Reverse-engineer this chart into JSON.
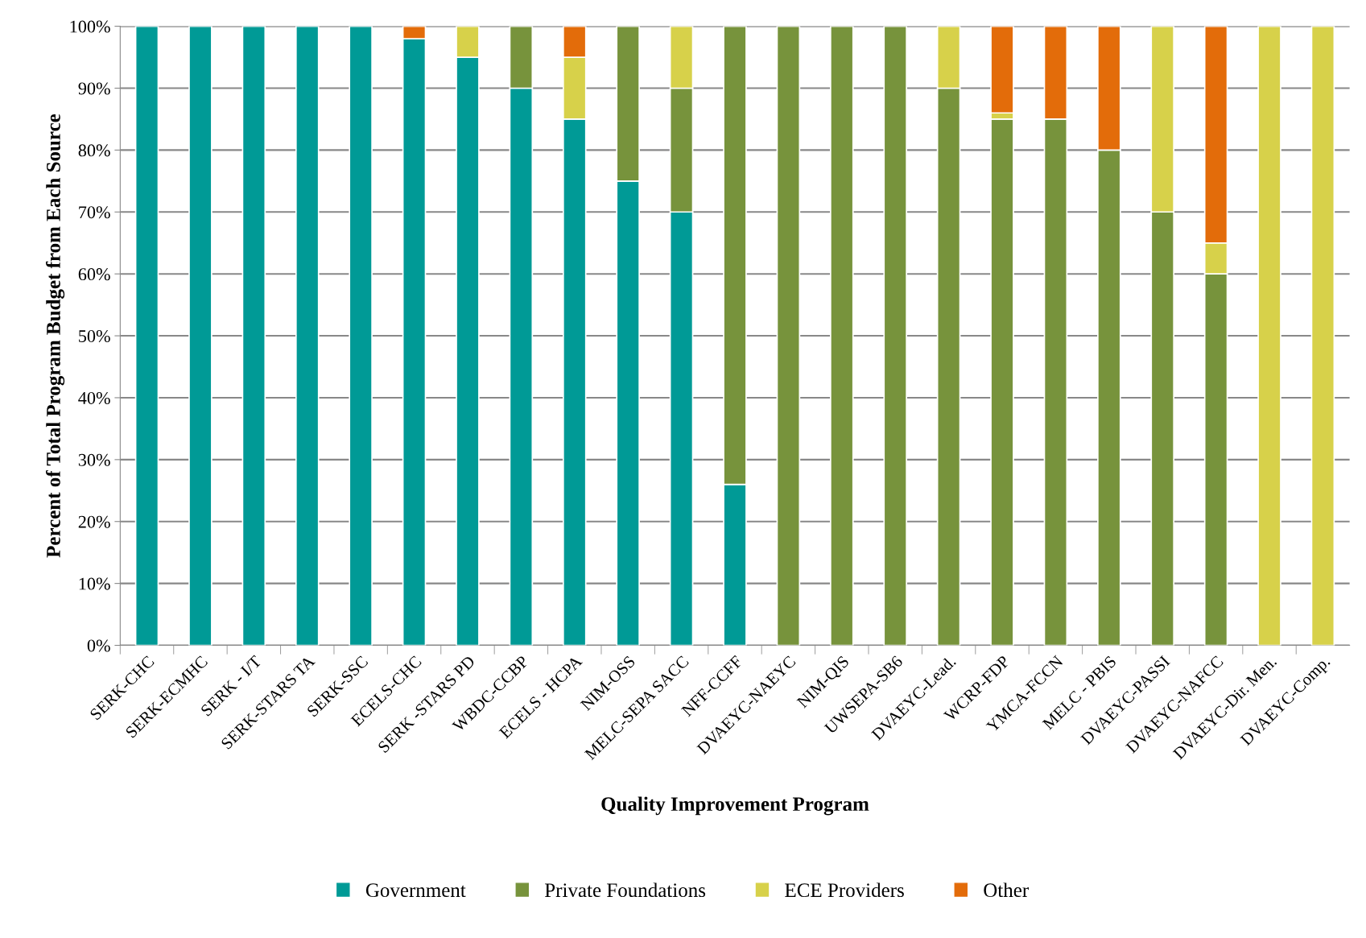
{
  "chart_data": {
    "type": "bar",
    "stacked": true,
    "xlabel": "Quality Improvement Program",
    "ylabel": "Percent of Total Program Budget from Each Source",
    "categories": [
      "SERK-CHC",
      "SERK-ECMHC",
      "SERK - I/T",
      "SERK-STARS TA",
      "SERK-SSC",
      "ECELS-CHC",
      "SERK -STARS PD",
      "WBDC-CCBP",
      "ECELS - HCPA",
      "NIM-OSS",
      "MELC-SEPA SACC",
      "NFF-CCFF",
      "DVAEYC-NAEYC",
      "NIM-QIS",
      "UWSEPA-SB6",
      "DVAEYC-Lead.",
      "WCRP-FDP",
      "YMCA-FCCN",
      "MELC - PBIS",
      "DVAEYC-PASSI",
      "DVAEYC-NAFCC",
      "DVAEYC-Dir. Men.",
      "DVAEYC-Comp."
    ],
    "series": [
      {
        "name": "Government",
        "color": "#009a96",
        "values": [
          100,
          100,
          100,
          100,
          100,
          98,
          95,
          90,
          85,
          75,
          70,
          26,
          0,
          0,
          0,
          0,
          0,
          0,
          0,
          0,
          0,
          0,
          0
        ]
      },
      {
        "name": "Private Foundations",
        "color": "#77933c",
        "values": [
          0,
          0,
          0,
          0,
          0,
          0,
          0,
          10,
          0,
          25,
          20,
          74,
          100,
          100,
          100,
          90,
          85,
          85,
          80,
          70,
          60,
          0,
          0
        ]
      },
      {
        "name": "ECE Providers",
        "color": "#d7d14a",
        "values": [
          0,
          0,
          0,
          0,
          0,
          0,
          5,
          0,
          10,
          0,
          10,
          0,
          0,
          0,
          0,
          10,
          1,
          0,
          0,
          30,
          5,
          100,
          100
        ]
      },
      {
        "name": "Other",
        "color": "#e36c0a",
        "values": [
          0,
          0,
          0,
          0,
          0,
          2,
          0,
          0,
          5,
          0,
          0,
          0,
          0,
          0,
          0,
          0,
          14,
          15,
          20,
          0,
          35,
          0,
          0
        ]
      }
    ],
    "ylim": [
      0,
      100
    ],
    "yticks": [
      {
        "value": 0,
        "label": "0%"
      },
      {
        "value": 10,
        "label": "10%"
      },
      {
        "value": 20,
        "label": "20%"
      },
      {
        "value": 30,
        "label": "30%"
      },
      {
        "value": 40,
        "label": "40%"
      },
      {
        "value": 50,
        "label": "50%"
      },
      {
        "value": 60,
        "label": "60%"
      },
      {
        "value": 70,
        "label": "70%"
      },
      {
        "value": 80,
        "label": "80%"
      },
      {
        "value": 90,
        "label": "90%"
      },
      {
        "value": 100,
        "label": "100%"
      }
    ],
    "grid": "y",
    "legend": "bottom"
  }
}
